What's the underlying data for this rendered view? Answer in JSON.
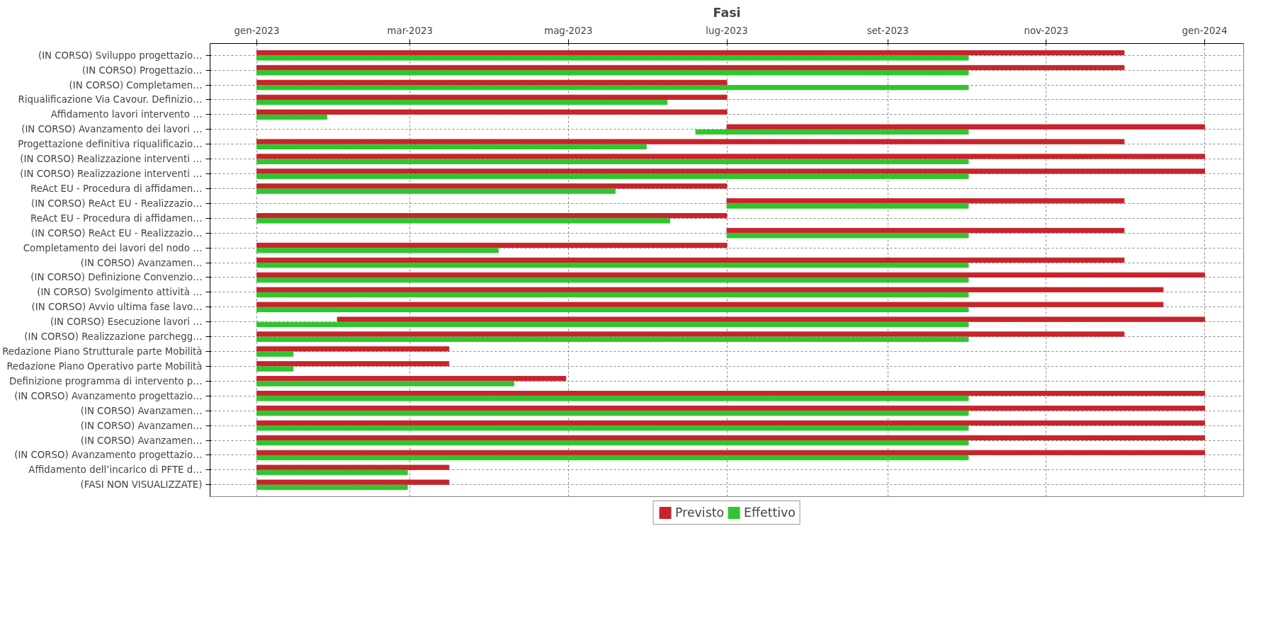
{
  "chart_data": {
    "type": "bar",
    "orientation": "horizontal",
    "title": "Fasi",
    "categories": [
      "(IN CORSO) Sviluppo progettazio…",
      "(IN CORSO) Progettazio…",
      "(IN CORSO) Completamen…",
      "Riqualificazione Via Cavour. Definizio…",
      "Affidamento lavori intervento …",
      "(IN CORSO) Avanzamento dei lavori …",
      "Progettazione definitiva riqualificazio…",
      "(IN CORSO) Realizzazione interventi …",
      "(IN CORSO) Realizzazione interventi …",
      "ReAct EU - Procedura di affidamen…",
      "(IN CORSO) ReAct EU - Realizzazio…",
      "ReAct EU - Procedura di affidamen…",
      "(IN CORSO) ReAct EU - Realizzazio…",
      "Completamento dei lavori del nodo …",
      "(IN CORSO) Avanzamen…",
      "(IN CORSO) Definizione Convenzio…",
      "(IN CORSO) Svolgimento attività …",
      "(IN CORSO) Avvio ultima fase lavo…",
      "(IN CORSO) Esecuzione lavori …",
      "(IN CORSO) Realizzazione parchegg…",
      "Redazione Piano Strutturale parte Mobilità",
      "Redazione Piano Operativo parte Mobilità",
      "Definizione programma di intervento p…",
      "(IN CORSO) Avanzamento progettazio…",
      "(IN CORSO) Avanzamen…",
      "(IN CORSO) Avanzamen…",
      "(IN CORSO) Avanzamen…",
      "(IN CORSO) Avanzamento progettazio…",
      "Affidamento dell’incarico di PFTE d…",
      "(FASI NON VISUALIZZATE)"
    ],
    "series": [
      {
        "name": "Previsto",
        "color": "#c8242b",
        "base": [
          19358,
          19358,
          19358,
          19358,
          19358,
          19539,
          19358,
          19358,
          19358,
          19358,
          19539,
          19358,
          19539,
          19358,
          19358,
          19358,
          19358,
          19358,
          19389,
          19358,
          19358,
          19358,
          19358,
          19358,
          19358,
          19358,
          19358,
          19358,
          19358,
          19358
        ],
        "values": [
          334,
          334,
          181,
          181,
          181,
          184,
          334,
          365,
          365,
          181,
          153,
          181,
          153,
          181,
          334,
          365,
          349,
          349,
          334,
          334,
          74,
          74,
          119,
          365,
          365,
          365,
          365,
          365,
          74,
          74
        ]
      },
      {
        "name": "Effettivo",
        "color": "#2ec62e",
        "base": [
          19358,
          19358,
          19358,
          19358,
          19358,
          19527,
          19358,
          19358,
          19358,
          19358,
          19539,
          19358,
          19539,
          19358,
          19358,
          19358,
          19358,
          19358,
          19358,
          19358,
          19358,
          19358,
          19358,
          19358,
          19358,
          19358,
          19358,
          19358,
          19358,
          19358
        ],
        "values": [
          274,
          274,
          274,
          158,
          27,
          105,
          150,
          274,
          274,
          138,
          93,
          159,
          93,
          93,
          274,
          274,
          274,
          274,
          274,
          274,
          14,
          14,
          99,
          274,
          274,
          274,
          274,
          274,
          58,
          58
        ]
      }
    ],
    "xlim": [
      "2022-12-14",
      "2024-01-16"
    ],
    "xticks": [
      {
        "value": "2023-01-01",
        "label": "gen-2023"
      },
      {
        "value": "2023-03-01",
        "label": "mar-2023"
      },
      {
        "value": "2023-05-01",
        "label": "mag-2023"
      },
      {
        "value": "2023-07-01",
        "label": "lug-2023"
      },
      {
        "value": "2023-09-01",
        "label": "set-2023"
      },
      {
        "value": "2023-11-01",
        "label": "nov-2023"
      },
      {
        "value": "2024-01-01",
        "label": "gen-2024"
      }
    ],
    "grid": true,
    "legend": "bottom"
  }
}
